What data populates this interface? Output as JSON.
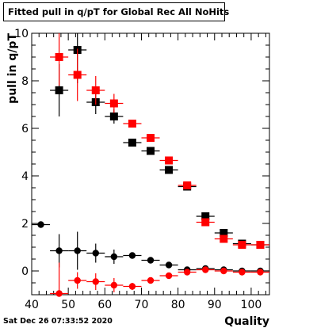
{
  "title": "Fitted pull in q/pT  for Global Rec All NoHits",
  "timestamp": "Sat Dec 26 07:33:52 2020",
  "chart_data": {
    "type": "scatter",
    "title": "Fitted pull in q/pT  for Global Rec All NoHits",
    "xlabel": "Quality",
    "ylabel": "pull in q/pT",
    "xlim": [
      40,
      105
    ],
    "ylim": [
      -1,
      10
    ],
    "xticks": [
      40,
      50,
      60,
      70,
      80,
      90,
      100
    ],
    "yticks": [
      0,
      2,
      4,
      6,
      8,
      10
    ],
    "grid": false,
    "legend": "none",
    "series": [
      {
        "marker": "square",
        "color": "#000000",
        "x": [
          47.5,
          52.5,
          57.5,
          62.5,
          67.5,
          72.5,
          77.5,
          82.5,
          87.5,
          92.5,
          97.5,
          102.5
        ],
        "y": [
          7.6,
          9.3,
          7.1,
          6.5,
          5.4,
          5.05,
          4.25,
          3.55,
          2.3,
          1.6,
          1.15,
          1.1
        ],
        "err": [
          1.1,
          1.4,
          0.5,
          0.3,
          0.1,
          0.1,
          0.1,
          0.08,
          0.1,
          0.1,
          0.06,
          0.06
        ]
      },
      {
        "marker": "square",
        "color": "#ff0000",
        "x": [
          47.5,
          52.5,
          57.5,
          62.5,
          67.5,
          72.5,
          77.5,
          82.5,
          87.5,
          92.5,
          97.5,
          102.5
        ],
        "y": [
          9.0,
          8.25,
          7.6,
          7.05,
          6.2,
          5.6,
          4.65,
          3.6,
          2.05,
          1.35,
          1.1,
          1.1
        ],
        "err": [
          1.2,
          1.1,
          0.6,
          0.4,
          0.15,
          0.1,
          0.1,
          0.1,
          0.1,
          0.1,
          0.06,
          0.06
        ]
      },
      {
        "marker": "circle",
        "color": "#000000",
        "x": [
          42.5,
          47.5,
          52.5,
          57.5,
          62.5,
          67.5,
          72.5,
          77.5,
          82.5,
          87.5,
          92.5,
          97.5,
          102.5
        ],
        "y": [
          1.95,
          0.85,
          0.85,
          0.75,
          0.6,
          0.65,
          0.45,
          0.25,
          0.05,
          0.1,
          0.05,
          0.0,
          0.0
        ],
        "err": [
          0.0,
          0.7,
          0.8,
          0.4,
          0.3,
          0.12,
          0.1,
          0.08,
          0.05,
          0.05,
          0.05,
          0.04,
          0.04
        ]
      },
      {
        "marker": "circle",
        "color": "#ff0000",
        "x": [
          47.5,
          52.5,
          57.5,
          62.5,
          67.5,
          72.5,
          77.5,
          82.5,
          87.5,
          92.5,
          97.5,
          102.5
        ],
        "y": [
          -0.95,
          -0.4,
          -0.45,
          -0.6,
          -0.65,
          -0.4,
          -0.2,
          -0.05,
          0.05,
          0.0,
          -0.05,
          -0.05
        ],
        "err": [
          1.3,
          0.35,
          0.35,
          0.3,
          0.15,
          0.1,
          0.08,
          0.06,
          0.05,
          0.05,
          0.04,
          0.04
        ]
      }
    ]
  }
}
